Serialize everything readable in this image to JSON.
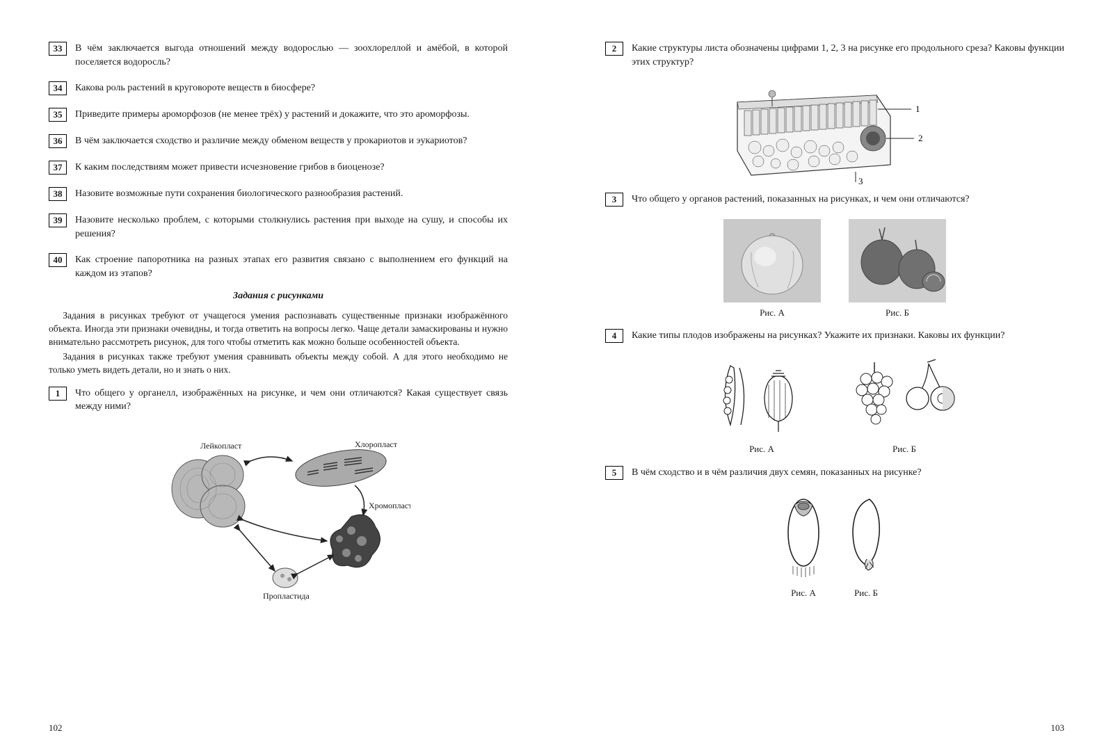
{
  "left": {
    "questions": [
      {
        "n": "33",
        "t": "В чём заключается выгода отношений между водорослью — зоохлореллой и амёбой, в которой поселяется водоросль?"
      },
      {
        "n": "34",
        "t": "Какова роль растений в круговороте веществ в биосфере?"
      },
      {
        "n": "35",
        "t": "Приведите примеры ароморфозов (не менее трёх) у растений и докажите, что это ароморфозы."
      },
      {
        "n": "36",
        "t": "В чём заключается сходство и различие между обменом веществ у прокариотов и эукариотов?"
      },
      {
        "n": "37",
        "t": "К каким последствиям может привести исчезновение грибов в биоценозе?"
      },
      {
        "n": "38",
        "t": "Назовите возможные пути сохранения биологического разнообразия растений."
      },
      {
        "n": "39",
        "t": "Назовите несколько проблем, с которыми столкнулись растения при выходе на сушу, и способы их решения?"
      },
      {
        "n": "40",
        "t": "Как строение папоротника на разных этапах его развития связано с выполнением его функций на каждом из этапов?"
      }
    ],
    "section_title": "Задания с рисунками",
    "intro": [
      "Задания в рисунках требуют от учащегося умения распознавать существенные признаки изображённого объекта. Иногда эти признаки очевидны, и тогда ответить на вопросы легко. Чаще детали замаскированы и нужно внимательно рассмотреть рисунок, для того чтобы отметить как можно больше особенностей объекта.",
      "Задания в рисунках также требуют умения сравнивать объекты между собой. А для этого необходимо не только уметь видеть детали, но и знать о них."
    ],
    "q1": {
      "n": "1",
      "t": "Что общего у органелл, изображённых на рисунке, и чем они отличаются? Какая существует связь между ними?"
    },
    "fig1_labels": {
      "leucoplast": "Лейкопласт",
      "chloroplast": "Хлоропласт",
      "chromoplast": "Хромопласт",
      "proplastid": "Пропластида"
    },
    "page_num": "102"
  },
  "right": {
    "questions": [
      {
        "n": "2",
        "t": "Какие структуры листа обозначены цифрами 1, 2, 3 на рисунке его продольного среза? Каковы функции этих структур?"
      },
      {
        "n": "3",
        "t": "Что общего у органов растений, показанных на рисунках, и чем они отличаются?"
      },
      {
        "n": "4",
        "t": "Какие типы плодов изображены на рисунках? Укажите их признаки. Каковы их функции?"
      },
      {
        "n": "5",
        "t": "В чём сходство и в чём различия двух семян, показанных на рисунке?"
      }
    ],
    "captions": {
      "a": "Рис. А",
      "b": "Рис. Б"
    },
    "leaf_labels": [
      "1",
      "2",
      "3"
    ],
    "page_num": "103"
  },
  "style": {
    "text_color": "#1a1a1a",
    "bg": "#ffffff",
    "border": "#000000",
    "fig_gray": "#888888",
    "fig_dark": "#333333",
    "fig_light": "#cccccc"
  }
}
